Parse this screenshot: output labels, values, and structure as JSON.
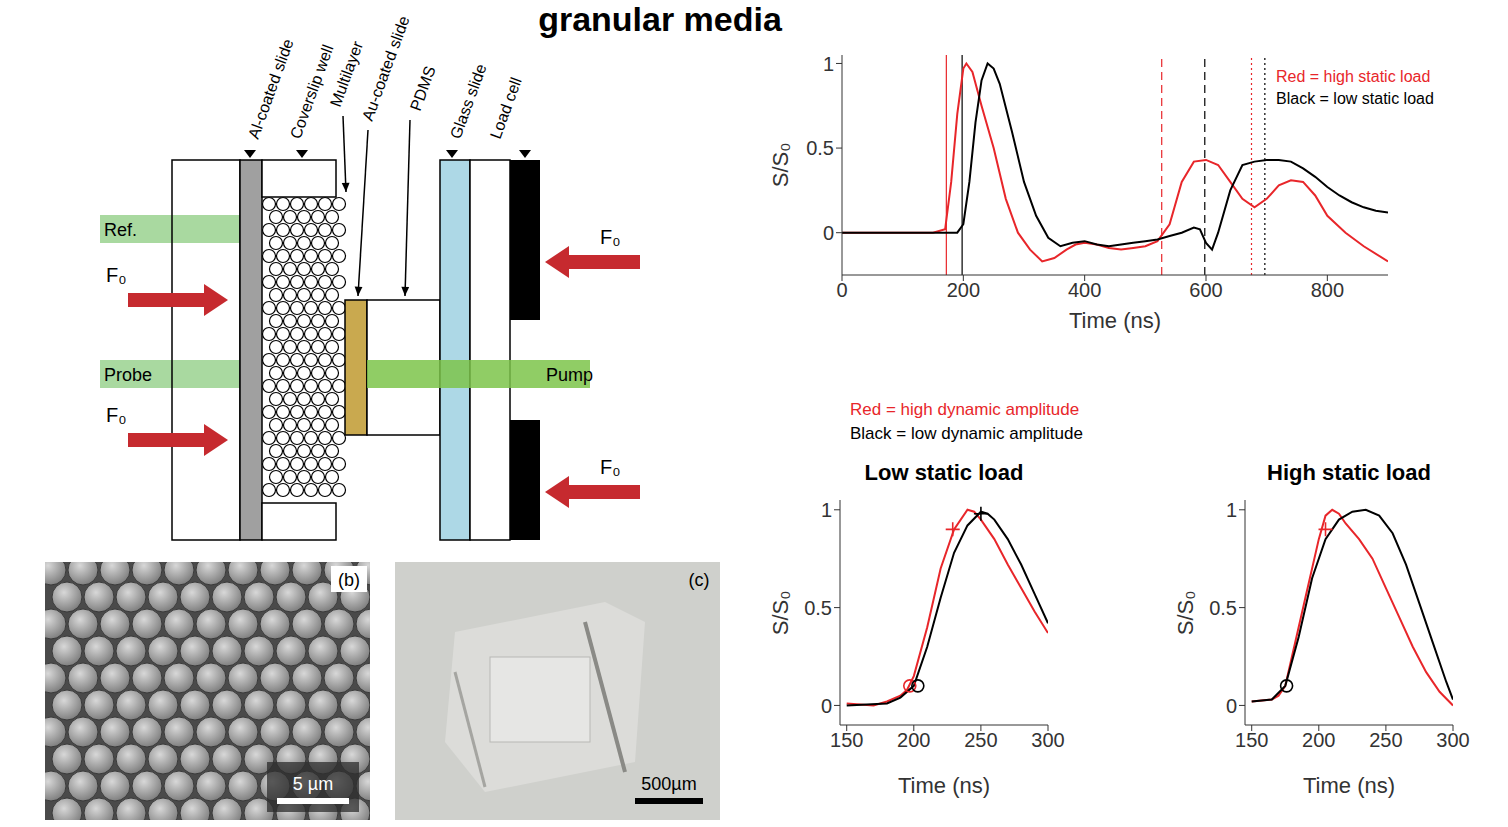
{
  "title": "granular media",
  "diagram": {
    "layer_labels": [
      "Al-coated slide",
      "Coverslip well",
      "Multilayer",
      "Au-coated slide",
      "PDMS",
      "Glass slide",
      "Load cell"
    ],
    "beam_labels": [
      "Ref.",
      "Probe",
      "Pump"
    ],
    "force_label": "F₀"
  },
  "images": [
    {
      "panel": "(b)",
      "scale_bar": "5 µm"
    },
    {
      "panel": "(c)",
      "scale_bar": "500µm"
    }
  ],
  "chart_data": [
    {
      "type": "line",
      "x_label": "Time (ns)",
      "y_label": "S/S₀",
      "xlim": [
        0,
        900
      ],
      "xticks": [
        0,
        200,
        400,
        600,
        800
      ],
      "ylim": [
        -0.25,
        1.05
      ],
      "yticks": [
        0,
        0.5,
        1
      ],
      "annotations": [
        {
          "text": "Red = high static load",
          "color": "#e8262a"
        },
        {
          "text": "Black = low static load",
          "color": "#000000"
        }
      ],
      "series": [
        {
          "color": "#e8262a",
          "x": [
            0,
            100,
            150,
            170,
            180,
            190,
            200,
            205,
            215,
            230,
            250,
            270,
            290,
            310,
            330,
            350,
            370,
            385,
            400,
            420,
            440,
            460,
            480,
            500,
            520,
            540,
            560,
            580,
            600,
            620,
            640,
            660,
            680,
            700,
            720,
            740,
            760,
            780,
            800,
            830,
            860,
            900
          ],
          "values": [
            0,
            0,
            0,
            0.02,
            0.3,
            0.7,
            0.97,
            1,
            0.95,
            0.75,
            0.5,
            0.2,
            0,
            -0.1,
            -0.17,
            -0.15,
            -0.1,
            -0.07,
            -0.06,
            -0.07,
            -0.09,
            -0.1,
            -0.09,
            -0.08,
            -0.05,
            0.05,
            0.3,
            0.42,
            0.43,
            0.4,
            0.3,
            0.2,
            0.15,
            0.2,
            0.28,
            0.31,
            0.3,
            0.22,
            0.1,
            0,
            -0.08,
            -0.17
          ]
        },
        {
          "color": "#000000",
          "x": [
            0,
            190,
            200,
            210,
            220,
            230,
            240,
            250,
            260,
            280,
            300,
            320,
            340,
            360,
            380,
            400,
            420,
            440,
            460,
            480,
            500,
            520,
            540,
            560,
            580,
            590,
            600,
            610,
            620,
            640,
            660,
            680,
            700,
            720,
            740,
            760,
            780,
            800,
            820,
            840,
            860,
            880,
            900
          ],
          "values": [
            0,
            0,
            0.05,
            0.3,
            0.65,
            0.9,
            1,
            0.97,
            0.88,
            0.6,
            0.3,
            0.1,
            -0.03,
            -0.08,
            -0.06,
            -0.05,
            -0.07,
            -0.08,
            -0.07,
            -0.06,
            -0.05,
            -0.04,
            -0.02,
            0,
            0.03,
            0.02,
            -0.06,
            -0.1,
            0,
            0.25,
            0.4,
            0.42,
            0.43,
            0.43,
            0.42,
            0.38,
            0.33,
            0.27,
            0.22,
            0.18,
            0.15,
            0.13,
            0.12
          ]
        }
      ],
      "vertical_lines": [
        {
          "x": 172,
          "color": "#e8262a",
          "line_style": "solid"
        },
        {
          "x": 198,
          "color": "#000000",
          "line_style": "solid"
        },
        {
          "x": 527,
          "color": "#e8262a",
          "line_style": "dashed"
        },
        {
          "x": 598,
          "color": "#000000",
          "line_style": "dashed"
        },
        {
          "x": 675,
          "color": "#e8262a",
          "line_style": "dotted"
        },
        {
          "x": 697,
          "color": "#000000",
          "line_style": "dotted"
        }
      ]
    },
    {
      "type": "line",
      "title": "Low static load",
      "x_label": "Time (ns)",
      "y_label": "S/S₀",
      "xlim": [
        145,
        300
      ],
      "xticks": [
        150,
        200,
        250,
        300
      ],
      "ylim": [
        -0.1,
        1.05
      ],
      "yticks": [
        0,
        0.5,
        1
      ],
      "annotations": [
        {
          "text": "Red = high dynamic amplitude",
          "color": "#e8262a"
        },
        {
          "text": "Black = low dynamic amplitude",
          "color": "#000000"
        }
      ],
      "series": [
        {
          "color": "#e8262a",
          "x": [
            150,
            170,
            180,
            190,
            195,
            200,
            210,
            220,
            230,
            240,
            245,
            250,
            260,
            270,
            280,
            290,
            300
          ],
          "values": [
            0.01,
            0,
            0.02,
            0.05,
            0.08,
            0.15,
            0.4,
            0.7,
            0.9,
            1,
            0.99,
            0.95,
            0.85,
            0.72,
            0.6,
            0.48,
            0.37
          ]
        },
        {
          "color": "#000000",
          "x": [
            150,
            180,
            190,
            200,
            210,
            220,
            230,
            240,
            250,
            255,
            260,
            270,
            280,
            290,
            300
          ],
          "values": [
            0,
            0.01,
            0.04,
            0.1,
            0.3,
            0.55,
            0.78,
            0.92,
            0.99,
            0.98,
            0.95,
            0.85,
            0.72,
            0.57,
            0.42
          ]
        }
      ],
      "markers": [
        {
          "x": 197,
          "y": 0.1,
          "color": "#e8262a",
          "marker": "circle"
        },
        {
          "x": 203,
          "y": 0.1,
          "color": "#000000",
          "marker": "circle"
        },
        {
          "x": 229,
          "y": 0.9,
          "color": "#e8262a",
          "marker": "plus"
        },
        {
          "x": 250,
          "y": 0.98,
          "color": "#000000",
          "marker": "plus"
        }
      ]
    },
    {
      "type": "line",
      "title": "High static load",
      "x_label": "Time (ns)",
      "y_label": "S/S₀",
      "xlim": [
        145,
        300
      ],
      "xticks": [
        150,
        200,
        250,
        300
      ],
      "ylim": [
        -0.1,
        1.05
      ],
      "yticks": [
        0,
        0.5,
        1
      ],
      "series": [
        {
          "color": "#e8262a",
          "x": [
            150,
            165,
            170,
            175,
            180,
            190,
            200,
            205,
            210,
            215,
            220,
            230,
            240,
            250,
            260,
            270,
            280,
            290,
            300
          ],
          "values": [
            0.02,
            0.03,
            0.05,
            0.1,
            0.25,
            0.55,
            0.85,
            0.97,
            1,
            0.98,
            0.93,
            0.85,
            0.75,
            0.6,
            0.45,
            0.3,
            0.17,
            0.07,
            0
          ]
        },
        {
          "color": "#000000",
          "x": [
            150,
            165,
            175,
            185,
            195,
            205,
            215,
            225,
            235,
            245,
            255,
            265,
            275,
            285,
            295,
            300
          ],
          "values": [
            0.02,
            0.03,
            0.1,
            0.35,
            0.65,
            0.85,
            0.95,
            0.99,
            1,
            0.97,
            0.88,
            0.72,
            0.52,
            0.32,
            0.12,
            0.03
          ]
        }
      ],
      "markers": [
        {
          "x": 176,
          "y": 0.1,
          "color": "#000000",
          "marker": "circle"
        },
        {
          "x": 205,
          "y": 0.9,
          "color": "#e8262a",
          "marker": "plus"
        }
      ]
    }
  ]
}
